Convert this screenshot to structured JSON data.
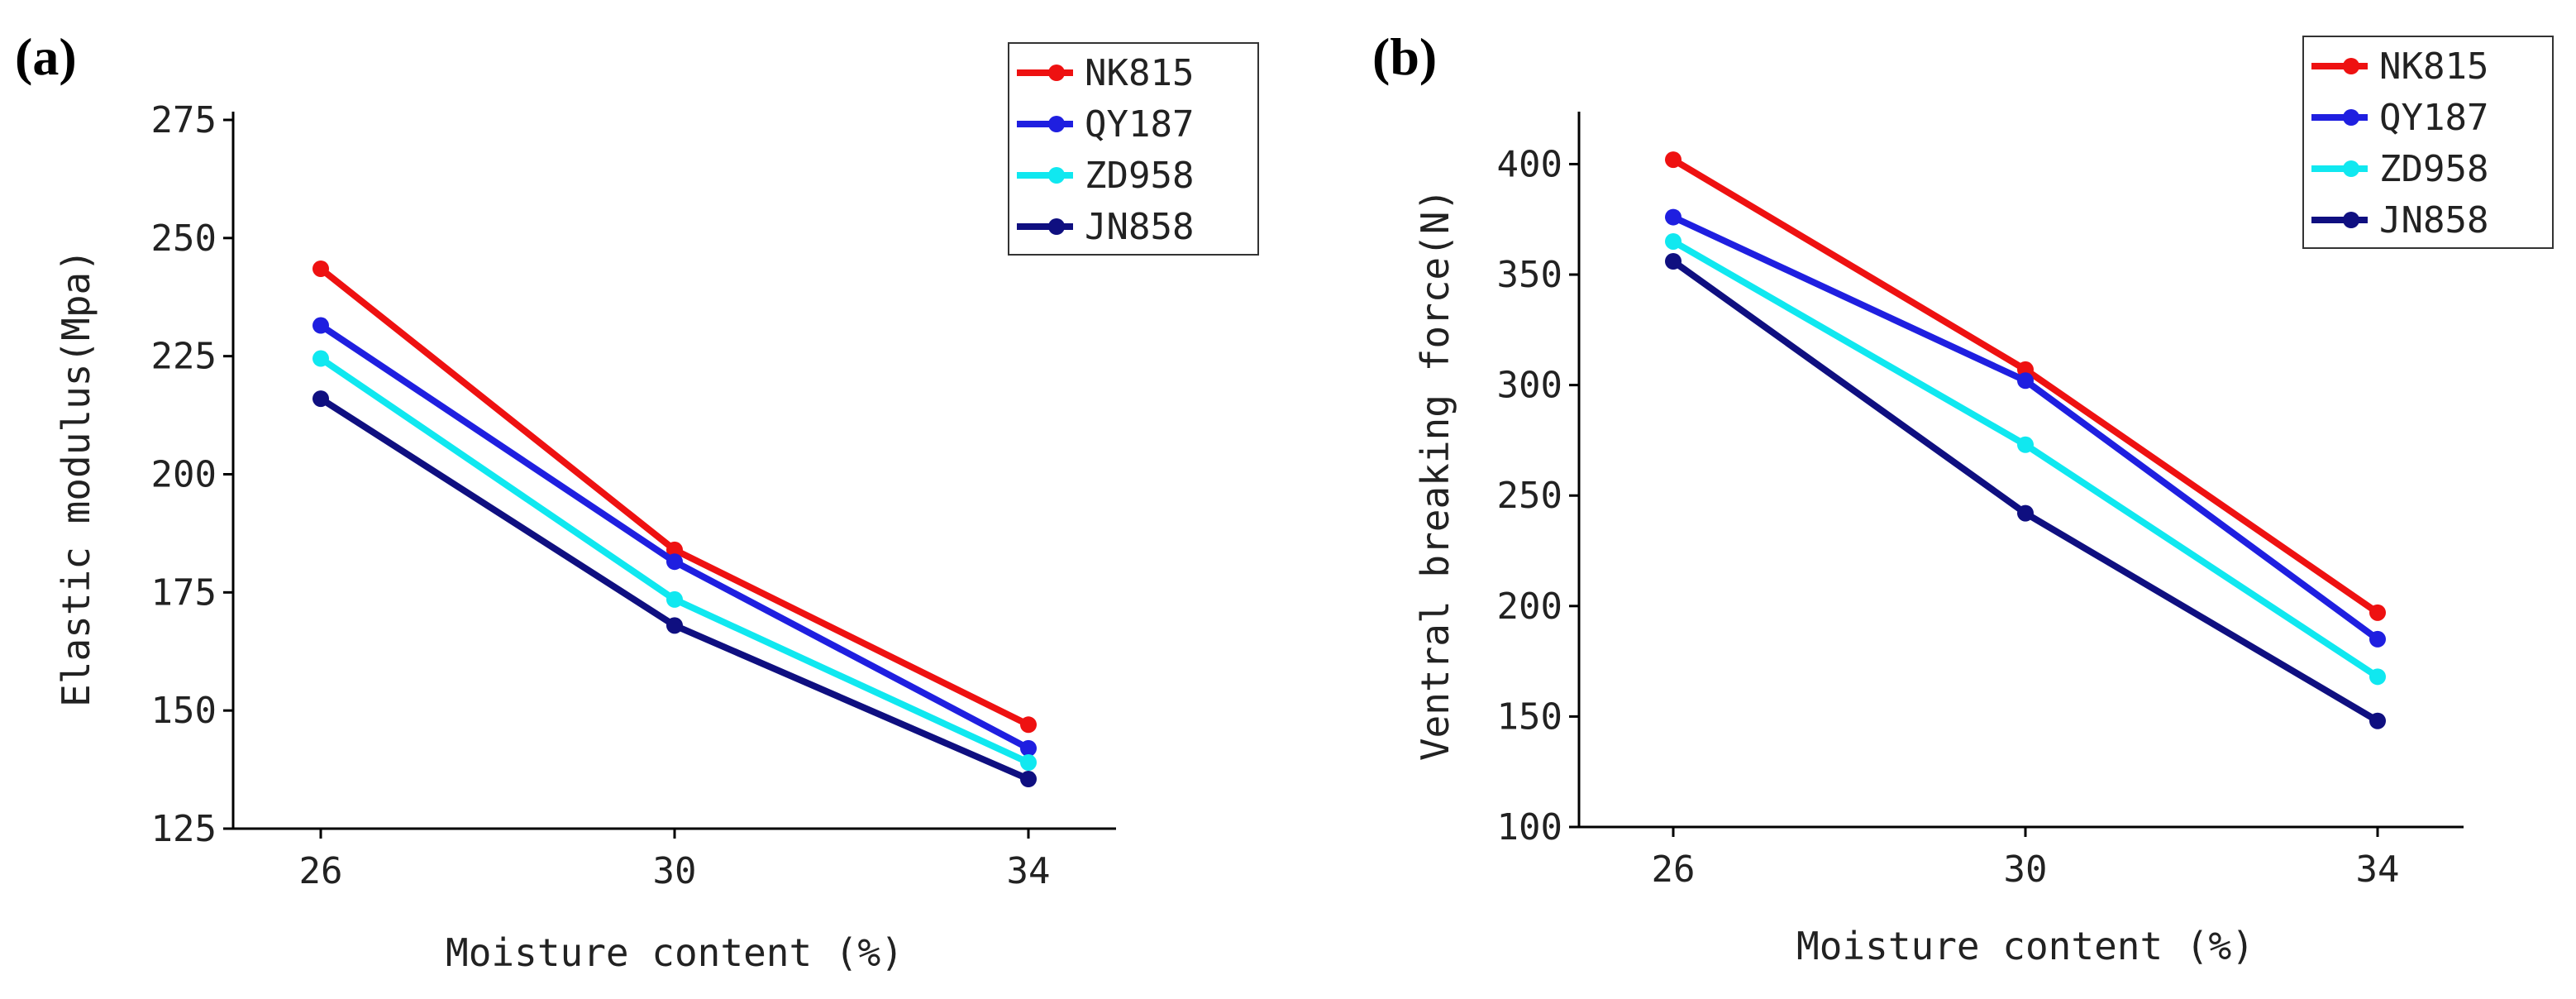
{
  "chart_data": [
    {
      "type": "line",
      "panel_label": "(a)",
      "title": "",
      "xlabel": "Moisture content (%)",
      "ylabel": "Elastic modulus(Mpa)",
      "categories": [
        "26",
        "30",
        "34"
      ],
      "ylim": [
        125,
        275
      ],
      "yticks": [
        "125",
        "150",
        "175",
        "200",
        "225",
        "250",
        "275"
      ],
      "legend_position": "top-right",
      "series": [
        {
          "name": "NK815",
          "color": "#ee1111",
          "values": [
            243.5,
            184,
            147
          ]
        },
        {
          "name": "QY187",
          "color": "#1f1fe0",
          "values": [
            231.5,
            181.5,
            142
          ]
        },
        {
          "name": "ZD958",
          "color": "#10e8f0",
          "values": [
            224.5,
            173.5,
            139
          ]
        },
        {
          "name": "JN858",
          "color": "#0f0f80",
          "values": [
            216,
            168,
            135.5
          ]
        }
      ]
    },
    {
      "type": "line",
      "panel_label": "(b)",
      "title": "",
      "xlabel": "Moisture content (%)",
      "ylabel": "Ventral breaking force(N)",
      "categories": [
        "26",
        "30",
        "34"
      ],
      "ylim": [
        100,
        420
      ],
      "yticks": [
        "100",
        "150",
        "200",
        "250",
        "300",
        "350",
        "400"
      ],
      "legend_position": "top-right",
      "series": [
        {
          "name": "NK815",
          "color": "#ee1111",
          "values": [
            402,
            307,
            197
          ]
        },
        {
          "name": "QY187",
          "color": "#1f1fe0",
          "values": [
            376,
            302,
            185
          ]
        },
        {
          "name": "ZD958",
          "color": "#10e8f0",
          "values": [
            365,
            273,
            168
          ]
        },
        {
          "name": "JN858",
          "color": "#0f0f80",
          "values": [
            356,
            242,
            148
          ]
        }
      ]
    }
  ]
}
